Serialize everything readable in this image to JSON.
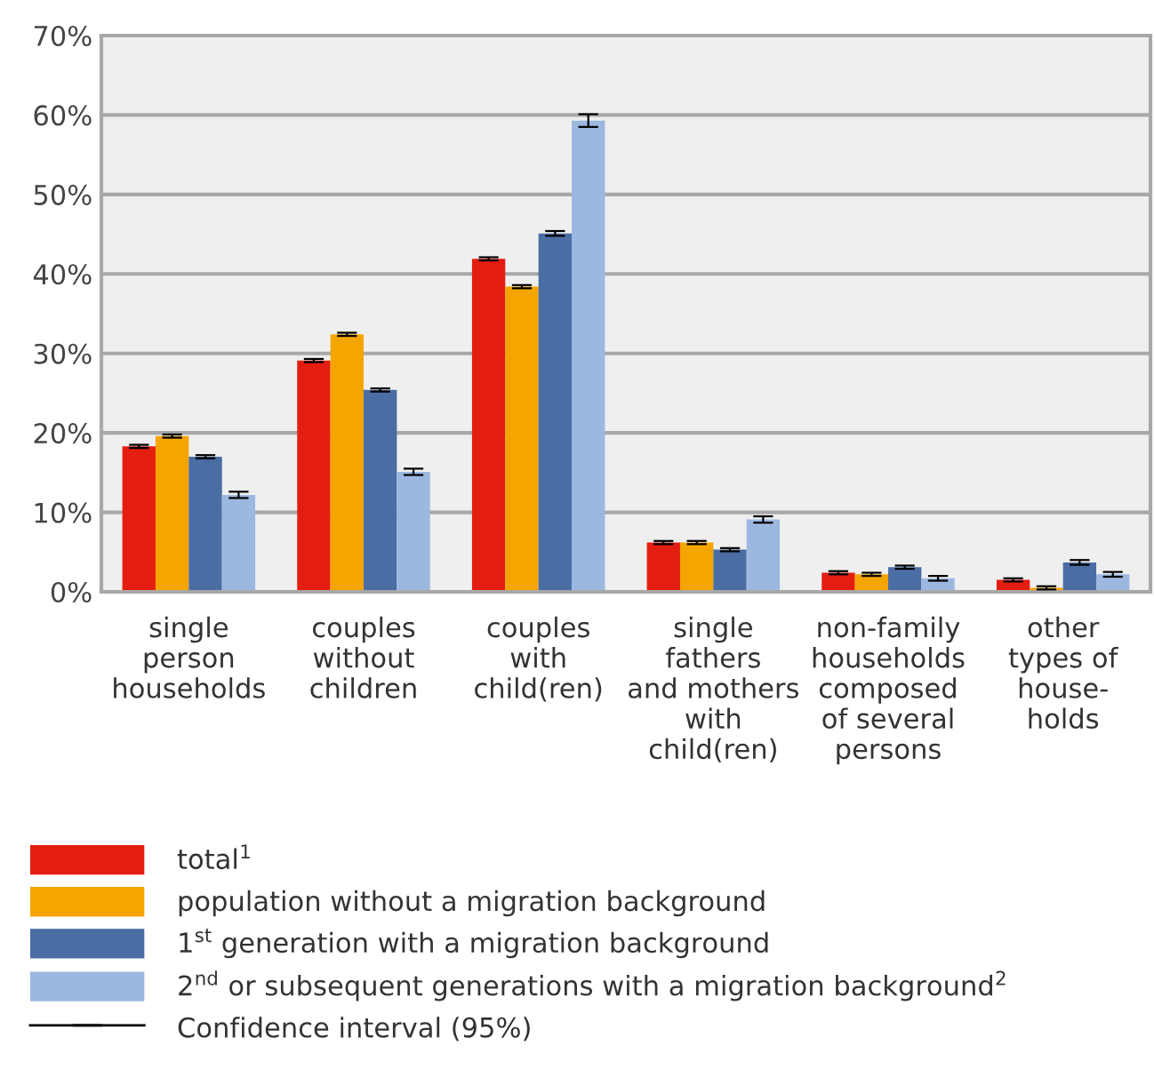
{
  "chart_data": {
    "type": "bar",
    "categories": [
      "single\nperson\nhouseholds",
      "couples\nwithout\nchildren",
      "couples\nwith\nchild(ren)",
      "single\nfathers\nand mothers\nwith\nchild(ren)",
      "non-family\nhouseholds\ncomposed\nof several\npersons",
      "other\ntypes of\nhouse-\nholds"
    ],
    "series": [
      {
        "name": "total$^{1}$",
        "color": "#e31e10",
        "values": [
          18.3,
          29.1,
          41.9,
          6.2,
          2.4,
          1.5
        ],
        "errors": [
          0.2,
          0.2,
          0.2,
          0.2,
          0.2,
          0.2
        ]
      },
      {
        "name": "population without a migration background",
        "color": "#f5a500",
        "values": [
          19.6,
          32.4,
          38.4,
          6.2,
          2.2,
          0.5
        ],
        "errors": [
          0.2,
          0.2,
          0.2,
          0.2,
          0.2,
          0.2
        ]
      },
      {
        "name": "1$^{st}$ generation with a migration background",
        "color": "#4a6da4",
        "values": [
          17.0,
          25.4,
          45.1,
          5.3,
          3.1,
          3.7
        ],
        "errors": [
          0.2,
          0.2,
          0.3,
          0.2,
          0.2,
          0.3
        ]
      },
      {
        "name": "2$^{nd}$ or subsequent generations with a migration background$^{2}$",
        "color": "#9cb8e0",
        "values": [
          12.2,
          15.1,
          59.3,
          9.1,
          1.7,
          2.2
        ],
        "errors": [
          0.4,
          0.4,
          0.8,
          0.4,
          0.3,
          0.3
        ]
      }
    ],
    "ylim": [
      0,
      70
    ],
    "yticks": [
      {
        "value": 0,
        "label": "0%"
      },
      {
        "value": 10,
        "label": "10%"
      },
      {
        "value": 20,
        "label": "20%"
      },
      {
        "value": 30,
        "label": "30%"
      },
      {
        "value": 40,
        "label": "40%"
      },
      {
        "value": 50,
        "label": "50%"
      },
      {
        "value": 60,
        "label": "60%"
      },
      {
        "value": 70,
        "label": "70%"
      }
    ],
    "grid": "y",
    "legend": "bottom",
    "annotations": [
      "Confidence interval (95%)"
    ]
  }
}
